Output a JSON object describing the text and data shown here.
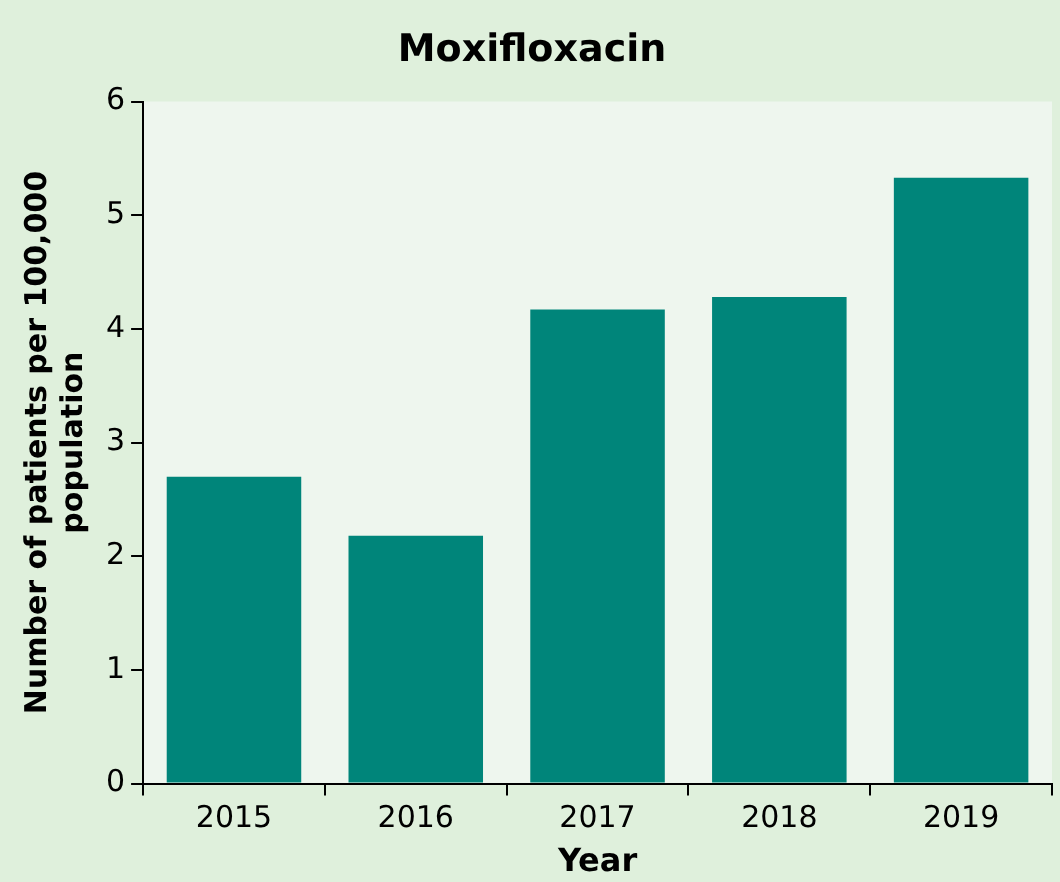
{
  "chart_data": {
    "type": "bar",
    "title": "Moxifloxacin",
    "xlabel": "Year",
    "ylabel": "Number of patients per 100,000 population",
    "categories": [
      "2015",
      "2016",
      "2017",
      "2018",
      "2019"
    ],
    "values": [
      2.7,
      2.18,
      4.17,
      4.28,
      5.33
    ],
    "color": "#00857a",
    "ylim": [
      0,
      6
    ],
    "yticks": [
      0,
      1,
      2,
      3,
      4,
      5,
      6
    ],
    "grid": false,
    "legend": false
  }
}
